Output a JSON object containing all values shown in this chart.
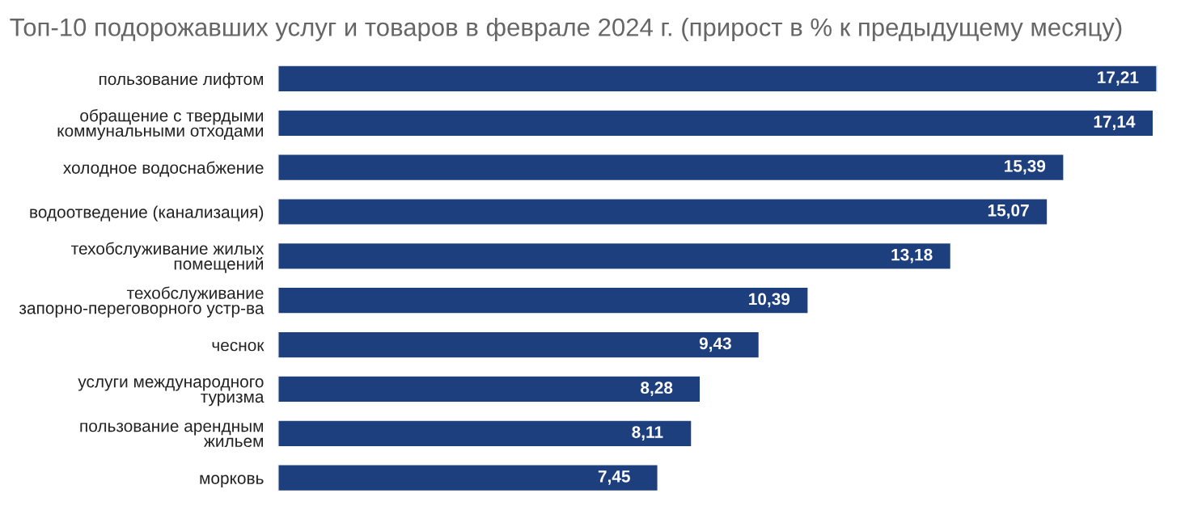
{
  "chart_data": {
    "type": "bar",
    "orientation": "horizontal",
    "title": "Топ-10 подорожавших услуг и товаров в феврале 2024 г. (прирост в % к предыдущему месяцу)",
    "categories": [
      "пользование лифтом",
      "обращение с твердыми\nкоммунальными отходами",
      "холодное водоснабжение",
      "водоотведение (канализация)",
      "техобслуживание жилых\nпомещений",
      "техобслуживание\nзапорно-переговорного устр-ва",
      "чеснок",
      "услуги международного\nтуризма",
      "пользование арендным\nжильем",
      "морковь"
    ],
    "values": [
      17.21,
      17.14,
      15.39,
      15.07,
      13.18,
      10.39,
      9.43,
      8.28,
      8.11,
      7.45
    ],
    "value_labels": [
      "17,21",
      "17,14",
      "15,39",
      "15,07",
      "13,18",
      "10,39",
      "9,43",
      "8,28",
      "8,11",
      "7,45"
    ],
    "color": "#1d3f7e",
    "grid": false,
    "legend": false
  }
}
